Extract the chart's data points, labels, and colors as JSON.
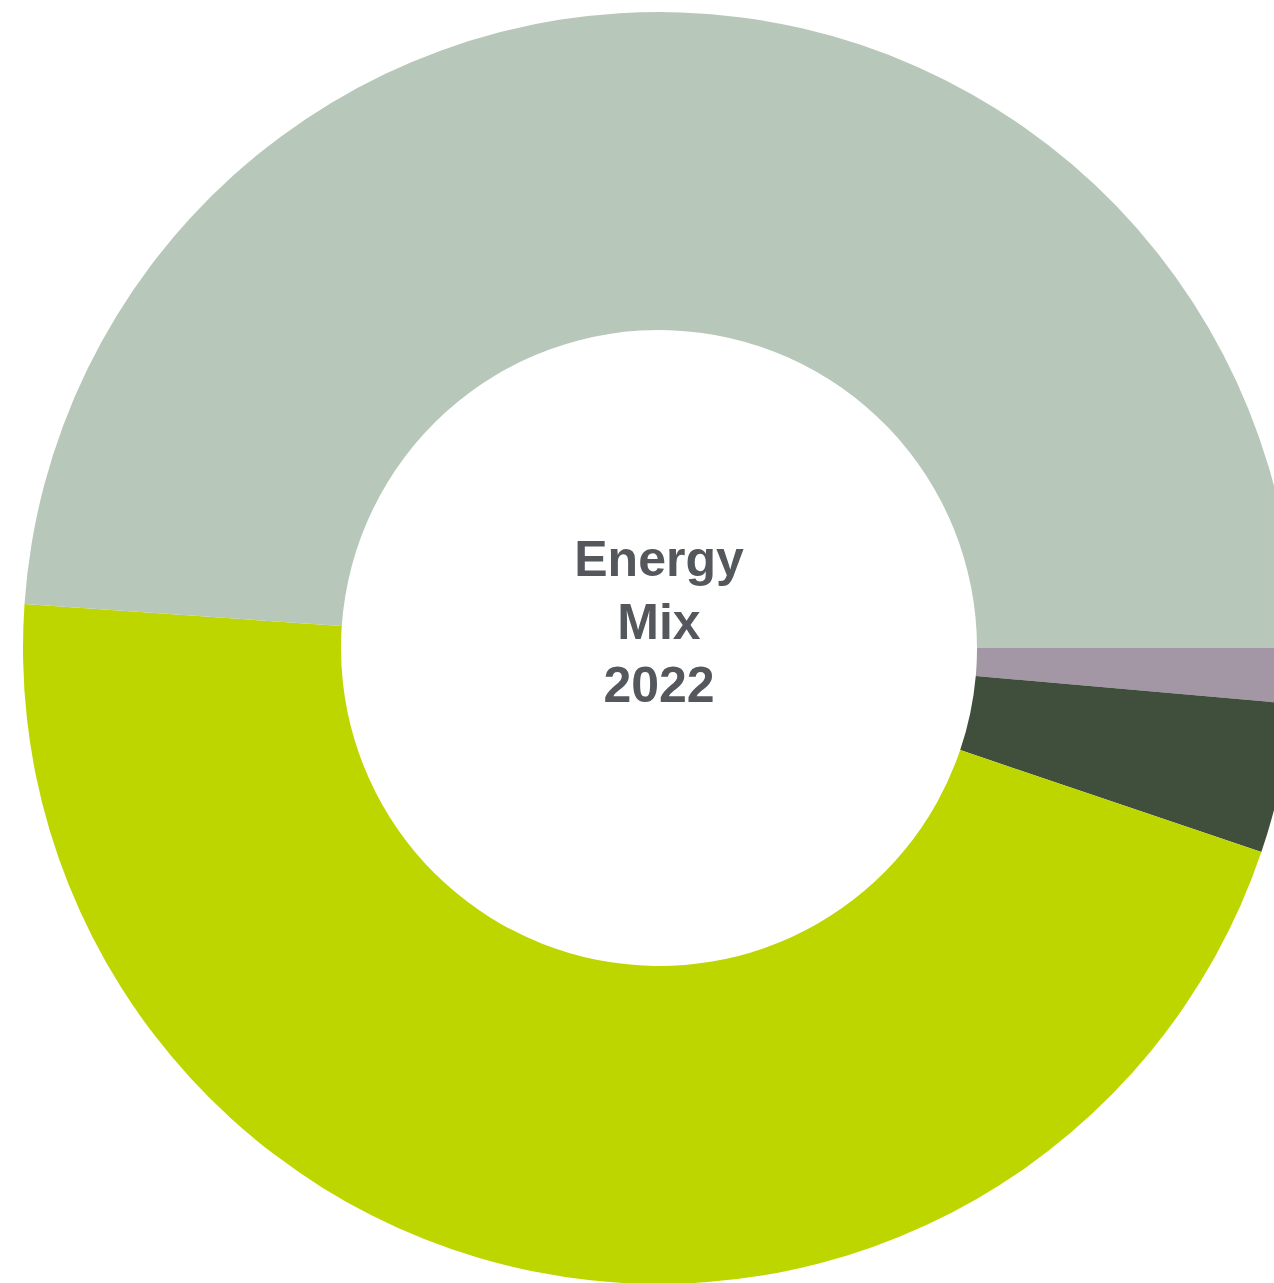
{
  "chart_data": {
    "type": "donut",
    "title": "Energy Mix 2022",
    "categories": [
      null,
      null,
      null,
      null
    ],
    "values": [
      1.4,
      3.8,
      45.9,
      48.9
    ],
    "colors": [
      "#a397a6",
      "#404f3c",
      "#bed600",
      "#b7c7b9"
    ],
    "legend": false
  }
}
